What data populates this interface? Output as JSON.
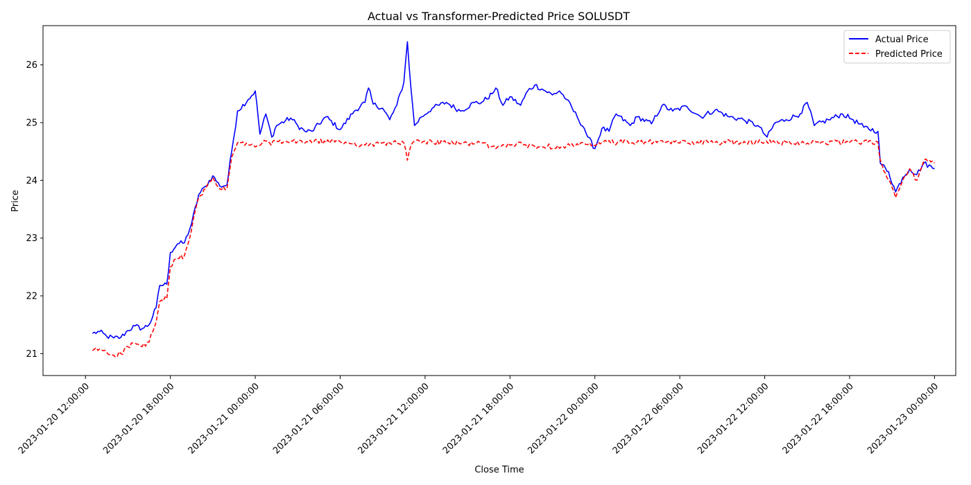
{
  "chart_data": {
    "type": "line",
    "title": "Actual vs Transformer-Predicted Price SOLUSDT",
    "xlabel": "Close Time",
    "ylabel": "Price",
    "xlim": [
      "2023-01-20 09:00:00",
      "2023-01-23 01:30:00"
    ],
    "ylim": [
      20.62,
      26.68
    ],
    "x_ticks": [
      "2023-01-20 12:00:00",
      "2023-01-20 18:00:00",
      "2023-01-21 00:00:00",
      "2023-01-21 06:00:00",
      "2023-01-21 12:00:00",
      "2023-01-21 18:00:00",
      "2023-01-22 00:00:00",
      "2023-01-22 06:00:00",
      "2023-01-22 12:00:00",
      "2023-01-22 18:00:00",
      "2023-01-23 00:00:00"
    ],
    "y_ticks": [
      21,
      22,
      23,
      24,
      25,
      26
    ],
    "grid": false,
    "legend_position": "top-right",
    "series": [
      {
        "name": "Actual Price",
        "color": "#0000ff",
        "style": "solid",
        "points": [
          [
            "2023-01-20 12:30",
            21.35
          ],
          [
            "2023-01-20 13:00",
            21.38
          ],
          [
            "2023-01-20 13:30",
            21.3
          ],
          [
            "2023-01-20 14:00",
            21.27
          ],
          [
            "2023-01-20 14:30",
            21.28
          ],
          [
            "2023-01-20 15:00",
            21.4
          ],
          [
            "2023-01-20 15:30",
            21.48
          ],
          [
            "2023-01-20 16:00",
            21.43
          ],
          [
            "2023-01-20 16:30",
            21.5
          ],
          [
            "2023-01-20 17:00",
            21.8
          ],
          [
            "2023-01-20 17:15",
            22.18
          ],
          [
            "2023-01-20 17:45",
            22.2
          ],
          [
            "2023-01-20 18:00",
            22.75
          ],
          [
            "2023-01-20 18:30",
            22.9
          ],
          [
            "2023-01-20 19:00",
            22.92
          ],
          [
            "2023-01-20 19:30",
            23.25
          ],
          [
            "2023-01-20 20:00",
            23.75
          ],
          [
            "2023-01-20 20:30",
            23.9
          ],
          [
            "2023-01-20 21:00",
            24.08
          ],
          [
            "2023-01-20 21:30",
            23.9
          ],
          [
            "2023-01-20 22:00",
            23.92
          ],
          [
            "2023-01-20 22:20",
            24.5
          ],
          [
            "2023-01-20 22:45",
            25.2
          ],
          [
            "2023-01-20 23:30",
            25.4
          ],
          [
            "2023-01-21 00:00",
            25.55
          ],
          [
            "2023-01-21 00:20",
            24.8
          ],
          [
            "2023-01-21 00:45",
            25.15
          ],
          [
            "2023-01-21 01:10",
            24.75
          ],
          [
            "2023-01-21 01:30",
            24.95
          ],
          [
            "2023-01-21 02:30",
            25.08
          ],
          [
            "2023-01-21 03:00",
            24.95
          ],
          [
            "2023-01-21 03:30",
            24.85
          ],
          [
            "2023-01-21 04:00",
            24.85
          ],
          [
            "2023-01-21 05:00",
            25.1
          ],
          [
            "2023-01-21 06:00",
            24.88
          ],
          [
            "2023-01-21 07:00",
            25.2
          ],
          [
            "2023-01-21 07:45",
            25.35
          ],
          [
            "2023-01-21 08:00",
            25.6
          ],
          [
            "2023-01-21 08:20",
            25.32
          ],
          [
            "2023-01-21 09:00",
            25.25
          ],
          [
            "2023-01-21 09:30",
            25.05
          ],
          [
            "2023-01-21 10:00",
            25.3
          ],
          [
            "2023-01-21 10:30",
            25.7
          ],
          [
            "2023-01-21 10:45",
            26.4
          ],
          [
            "2023-01-21 11:00",
            25.6
          ],
          [
            "2023-01-21 11:15",
            24.95
          ],
          [
            "2023-01-21 11:45",
            25.1
          ],
          [
            "2023-01-21 12:30",
            25.25
          ],
          [
            "2023-01-21 13:30",
            25.35
          ],
          [
            "2023-01-21 14:30",
            25.2
          ],
          [
            "2023-01-21 15:30",
            25.35
          ],
          [
            "2023-01-21 16:00",
            25.35
          ],
          [
            "2023-01-21 16:45",
            25.5
          ],
          [
            "2023-01-21 17:00",
            25.6
          ],
          [
            "2023-01-21 17:30",
            25.3
          ],
          [
            "2023-01-21 18:00",
            25.45
          ],
          [
            "2023-01-21 18:45",
            25.3
          ],
          [
            "2023-01-21 19:15",
            25.55
          ],
          [
            "2023-01-21 19:45",
            25.65
          ],
          [
            "2023-01-21 20:30",
            25.55
          ],
          [
            "2023-01-21 21:00",
            25.48
          ],
          [
            "2023-01-21 21:30",
            25.55
          ],
          [
            "2023-01-21 22:00",
            25.4
          ],
          [
            "2023-01-21 22:45",
            25.1
          ],
          [
            "2023-01-21 23:15",
            24.9
          ],
          [
            "2023-01-21 23:30",
            24.75
          ],
          [
            "2023-01-22 00:00",
            24.55
          ],
          [
            "2023-01-22 00:30",
            24.9
          ],
          [
            "2023-01-22 01:00",
            24.85
          ],
          [
            "2023-01-22 01:30",
            25.15
          ],
          [
            "2023-01-22 02:30",
            24.95
          ],
          [
            "2023-01-22 03:00",
            25.1
          ],
          [
            "2023-01-22 04:00",
            24.98
          ],
          [
            "2023-01-22 04:45",
            25.3
          ],
          [
            "2023-01-22 05:30",
            25.2
          ],
          [
            "2023-01-22 06:30",
            25.28
          ],
          [
            "2023-01-22 07:30",
            25.1
          ],
          [
            "2023-01-22 08:30",
            25.22
          ],
          [
            "2023-01-22 09:30",
            25.1
          ],
          [
            "2023-01-22 10:30",
            25.05
          ],
          [
            "2023-01-22 11:30",
            24.95
          ],
          [
            "2023-01-22 12:10",
            24.75
          ],
          [
            "2023-01-22 12:45",
            25.0
          ],
          [
            "2023-01-22 13:30",
            25.05
          ],
          [
            "2023-01-22 14:30",
            25.15
          ],
          [
            "2023-01-22 15:00",
            25.35
          ],
          [
            "2023-01-22 15:30",
            24.95
          ],
          [
            "2023-01-22 16:30",
            25.05
          ],
          [
            "2023-01-22 17:30",
            25.15
          ],
          [
            "2023-01-22 18:15",
            25.05
          ],
          [
            "2023-01-22 19:00",
            24.92
          ],
          [
            "2023-01-22 20:00",
            24.85
          ],
          [
            "2023-01-22 20:10",
            24.3
          ],
          [
            "2023-01-22 20:45",
            24.15
          ],
          [
            "2023-01-22 21:15",
            23.8
          ],
          [
            "2023-01-22 21:45",
            24.05
          ],
          [
            "2023-01-22 22:15",
            24.2
          ],
          [
            "2023-01-22 22:45",
            24.1
          ],
          [
            "2023-01-22 23:15",
            24.3
          ],
          [
            "2023-01-23 00:00",
            24.2
          ]
        ]
      },
      {
        "name": "Predicted Price",
        "color": "#ff0000",
        "style": "dashed",
        "points": [
          [
            "2023-01-20 12:30",
            21.05
          ],
          [
            "2023-01-20 13:00",
            21.08
          ],
          [
            "2023-01-20 13:30",
            21.02
          ],
          [
            "2023-01-20 14:00",
            20.97
          ],
          [
            "2023-01-20 14:30",
            21.0
          ],
          [
            "2023-01-20 15:00",
            21.12
          ],
          [
            "2023-01-20 15:30",
            21.18
          ],
          [
            "2023-01-20 16:00",
            21.12
          ],
          [
            "2023-01-20 16:30",
            21.2
          ],
          [
            "2023-01-20 17:00",
            21.55
          ],
          [
            "2023-01-20 17:15",
            21.9
          ],
          [
            "2023-01-20 17:45",
            21.95
          ],
          [
            "2023-01-20 18:00",
            22.5
          ],
          [
            "2023-01-20 18:30",
            22.65
          ],
          [
            "2023-01-20 19:00",
            22.7
          ],
          [
            "2023-01-20 19:30",
            23.15
          ],
          [
            "2023-01-20 20:00",
            23.7
          ],
          [
            "2023-01-20 20:30",
            23.85
          ],
          [
            "2023-01-20 21:00",
            24.05
          ],
          [
            "2023-01-20 21:30",
            23.85
          ],
          [
            "2023-01-20 22:00",
            23.85
          ],
          [
            "2023-01-20 22:20",
            24.4
          ],
          [
            "2023-01-20 22:45",
            24.65
          ],
          [
            "2023-01-20 23:30",
            24.62
          ],
          [
            "2023-01-21 00:00",
            24.58
          ],
          [
            "2023-01-21 00:30",
            24.65
          ],
          [
            "2023-01-21 03:00",
            24.67
          ],
          [
            "2023-01-21 06:00",
            24.67
          ],
          [
            "2023-01-21 08:00",
            24.6
          ],
          [
            "2023-01-21 09:00",
            24.65
          ],
          [
            "2023-01-21 10:30",
            24.65
          ],
          [
            "2023-01-21 10:45",
            24.35
          ],
          [
            "2023-01-21 11:00",
            24.6
          ],
          [
            "2023-01-21 11:15",
            24.68
          ],
          [
            "2023-01-21 14:00",
            24.64
          ],
          [
            "2023-01-21 16:00",
            24.65
          ],
          [
            "2023-01-21 17:00",
            24.55
          ],
          [
            "2023-01-21 17:30",
            24.62
          ],
          [
            "2023-01-21 19:00",
            24.62
          ],
          [
            "2023-01-21 20:00",
            24.58
          ],
          [
            "2023-01-21 22:00",
            24.6
          ],
          [
            "2023-01-21 23:30",
            24.62
          ],
          [
            "2023-01-22 00:00",
            24.6
          ],
          [
            "2023-01-22 00:30",
            24.66
          ],
          [
            "2023-01-22 05:00",
            24.66
          ],
          [
            "2023-01-22 08:00",
            24.66
          ],
          [
            "2023-01-22 12:00",
            24.66
          ],
          [
            "2023-01-22 16:00",
            24.66
          ],
          [
            "2023-01-22 20:00",
            24.66
          ],
          [
            "2023-01-22 20:10",
            24.35
          ],
          [
            "2023-01-22 20:45",
            24.0
          ],
          [
            "2023-01-22 21:15",
            23.7
          ],
          [
            "2023-01-22 21:45",
            24.0
          ],
          [
            "2023-01-22 22:15",
            24.2
          ],
          [
            "2023-01-22 22:45",
            24.0
          ],
          [
            "2023-01-22 23:15",
            24.35
          ],
          [
            "2023-01-23 00:00",
            24.3
          ]
        ]
      }
    ]
  }
}
